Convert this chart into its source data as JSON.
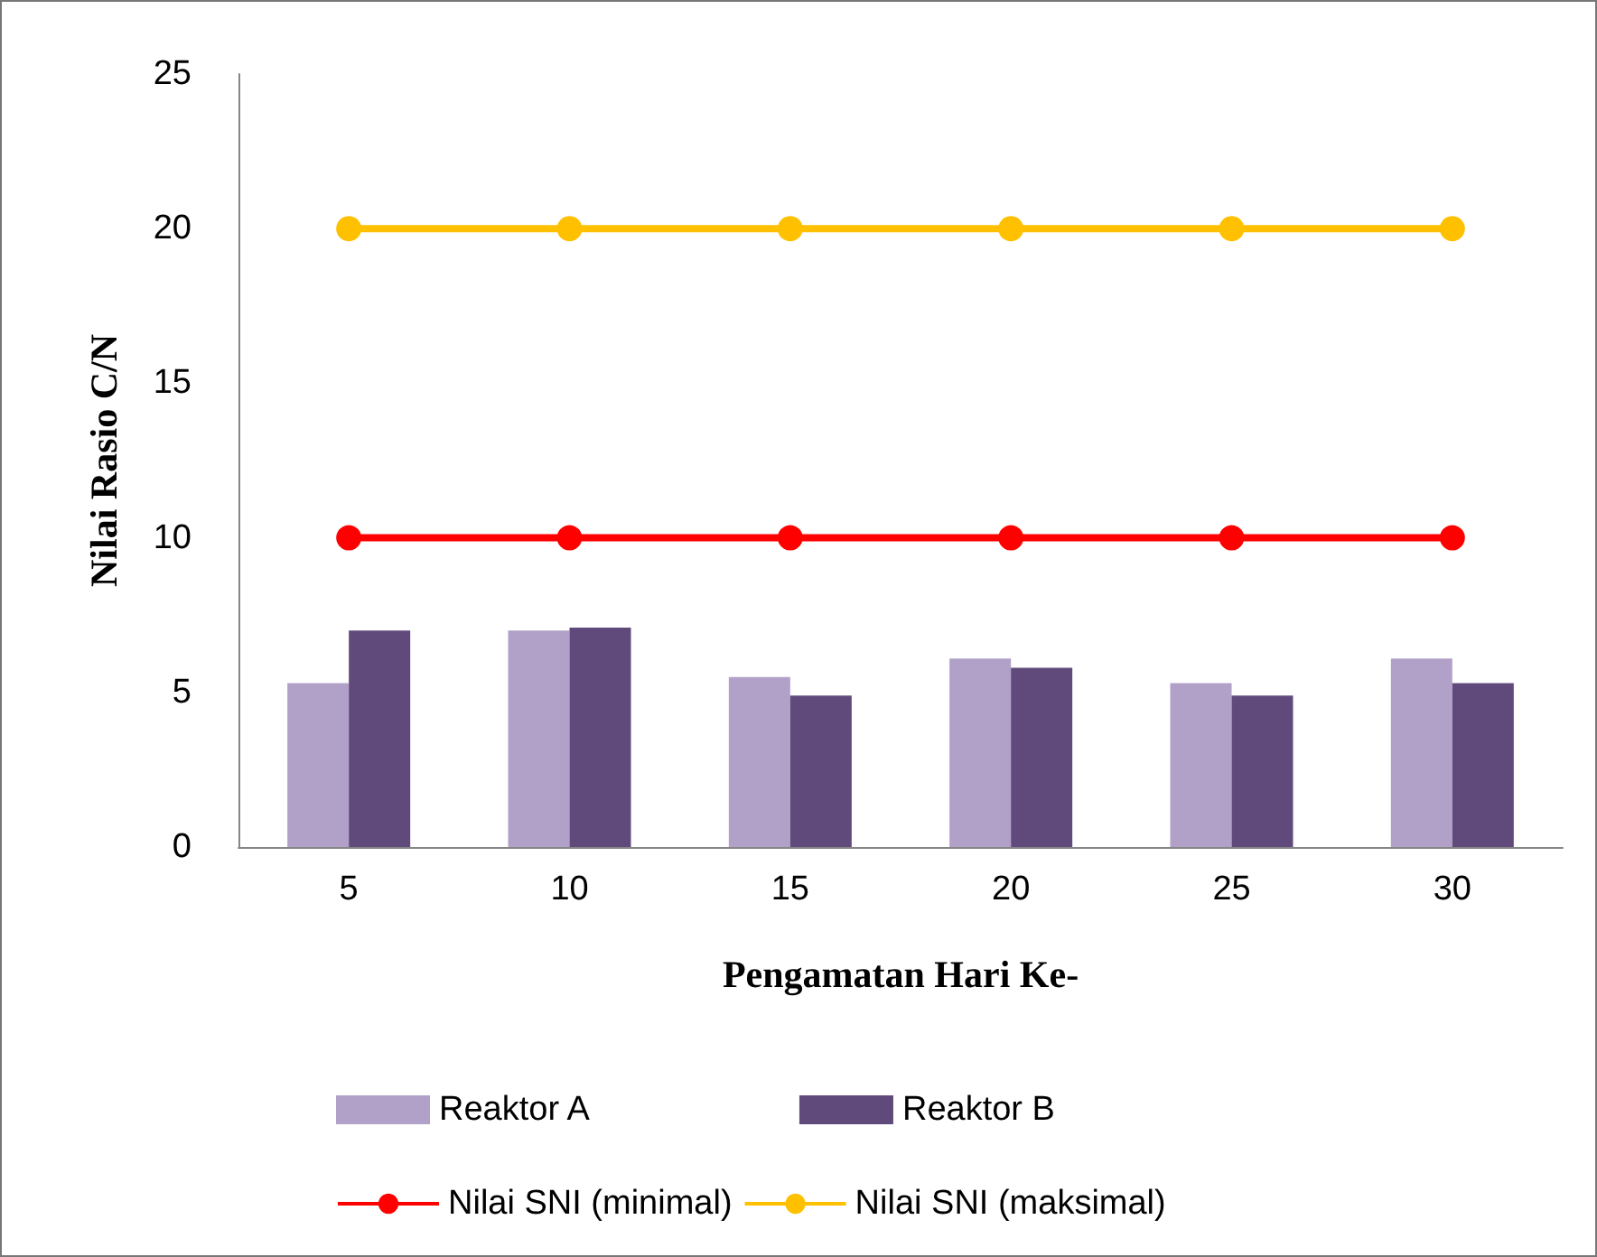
{
  "chart_data": {
    "type": "bar",
    "xlabel": "Pengamatan Hari Ke-",
    "ylabel": "Nilai Rasio C/N",
    "categories": [
      "5",
      "10",
      "15",
      "20",
      "25",
      "30"
    ],
    "series": [
      {
        "name": "Reaktor A",
        "color": "#b1a0c7",
        "values": [
          5.3,
          7.0,
          5.5,
          6.1,
          5.3,
          6.1
        ]
      },
      {
        "name": "Reaktor B",
        "color": "#604a7b",
        "values": [
          7.0,
          7.1,
          4.9,
          5.8,
          4.9,
          5.3
        ]
      },
      {
        "name": "Nilai SNI (minimal)",
        "type": "line",
        "color": "#ff0000",
        "values": [
          10,
          10,
          10,
          10,
          10,
          10
        ]
      },
      {
        "name": "Nilai SNI (maksimal)",
        "type": "line",
        "color": "#ffc000",
        "values": [
          20,
          20,
          20,
          20,
          20,
          20
        ]
      }
    ],
    "ylim": [
      0,
      25
    ],
    "yticks": [
      0,
      5,
      10,
      15,
      20,
      25
    ],
    "grid": false,
    "legend": "bottom",
    "marker": "circle",
    "line_style": "solid"
  }
}
